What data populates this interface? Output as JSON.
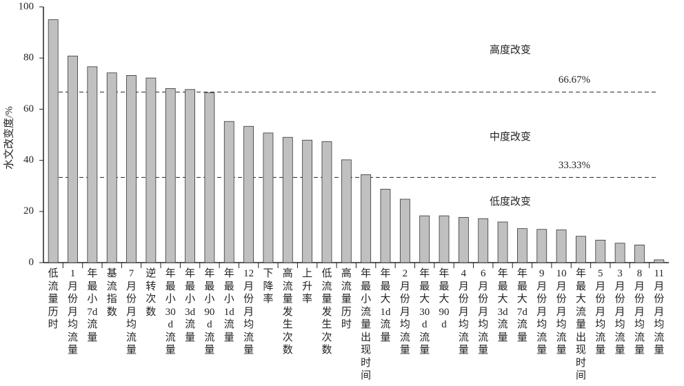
{
  "chart_data": {
    "type": "bar",
    "y_label": "水文改变度/%",
    "categories": [
      "低流量历时",
      "1月份月均流量",
      "年最小7d流量",
      "基流指数",
      "7月份月均流量",
      "逆转次数",
      "年最小30d流量",
      "年最小3d流量",
      "年最小90d流量",
      "年最小1d流量",
      "12月份月均流量",
      "下降率",
      "高流量发生次数",
      "上升率",
      "低流量发生次数",
      "高流量历时",
      "年最小流量出现时间",
      "年最大1d流量",
      "2月份月均流量",
      "年最大30d流量",
      "年最大90d",
      "4月份月均流量",
      "6月份月均流量",
      "年最大3d流量",
      "年最大7d流量",
      "9月份月均流量",
      "10月份月均流量",
      "年最大流量出现时间",
      "5月份月均流量",
      "3月份月均流量",
      "8月份月均流量",
      "11月份月均流量"
    ],
    "values": [
      95,
      80.8,
      76.6,
      74.2,
      73.2,
      72.2,
      68.1,
      67.7,
      66.4,
      55.2,
      53.3,
      50.7,
      49.0,
      47.9,
      47.3,
      40.2,
      34.4,
      28.7,
      24.8,
      18.3,
      18.3,
      17.7,
      17.2,
      15.9,
      13.3,
      13.0,
      12.8,
      10.3,
      8.8,
      7.6,
      6.9,
      1.1
    ],
    "color": "#c0c0c0",
    "ylim": [
      0,
      100
    ],
    "yticks": [
      0,
      20,
      40,
      60,
      80,
      100
    ],
    "thresholds": [
      {
        "value": 66.67,
        "label": "66.67%"
      },
      {
        "value": 33.33,
        "label": "33.33%"
      }
    ],
    "zone_labels": [
      "高度改变",
      "中度改变",
      "低度改变"
    ]
  }
}
